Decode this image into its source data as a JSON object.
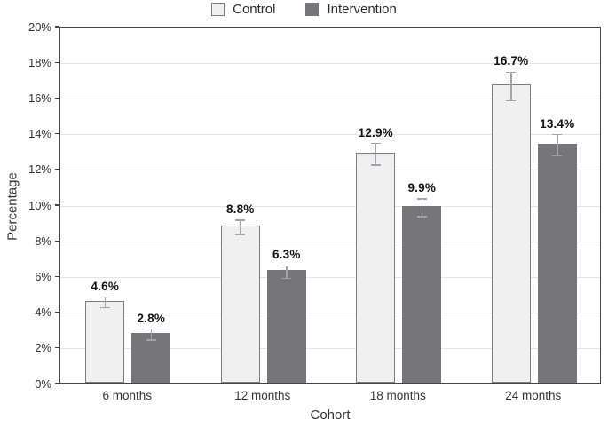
{
  "chart_data": {
    "type": "bar",
    "title": "",
    "categories": [
      "6 months",
      "12 months",
      "18 months",
      "24 months"
    ],
    "series": [
      {
        "name": "Control",
        "fill": "#f0f0f1",
        "border": "#7d7d80",
        "values": [
          4.6,
          8.8,
          12.9,
          16.7
        ],
        "errors": [
          0.3,
          0.4,
          0.6,
          0.8
        ],
        "value_labels": [
          "4.6%",
          "8.8%",
          "12.9%",
          "16.7%"
        ]
      },
      {
        "name": "Intervention",
        "fill": "#76767a",
        "border": "none",
        "values": [
          2.8,
          6.3,
          9.9,
          13.4
        ],
        "errors": [
          0.3,
          0.35,
          0.5,
          0.6
        ],
        "value_labels": [
          "2.8%",
          "6.3%",
          "9.9%",
          "13.4%"
        ]
      }
    ],
    "xlabel": "Cohort",
    "ylabel": "Percentage",
    "ylim": [
      0,
      20
    ],
    "ytick_step": 2,
    "ytick_labels": [
      "0%",
      "2%",
      "4%",
      "6%",
      "8%",
      "10%",
      "12%",
      "14%",
      "16%",
      "18%",
      "20%"
    ],
    "grid": true,
    "gridline_color": "#e5e5e7",
    "axis_border_color": "#454547",
    "errorbar_color": "#a4a4a8",
    "legend_position": "top-center"
  }
}
